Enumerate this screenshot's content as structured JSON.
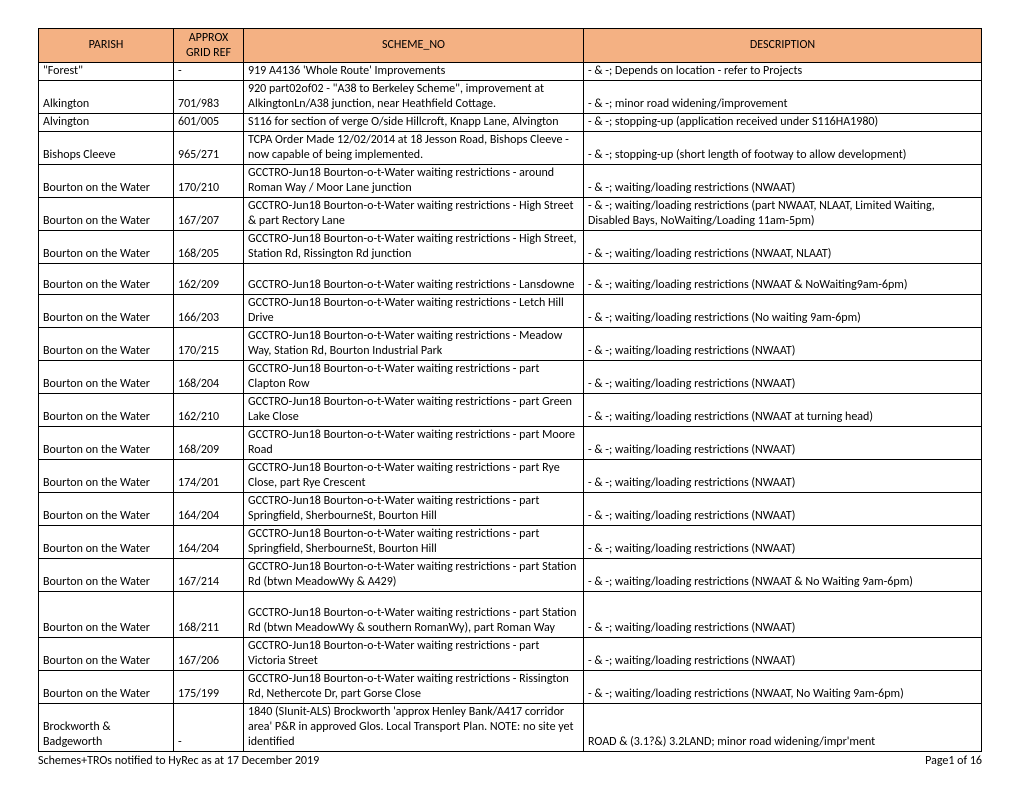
{
  "table": {
    "header_bg": "#f4b183",
    "border_color": "#000000",
    "columns": [
      {
        "key": "parish",
        "label": "PARISH"
      },
      {
        "key": "grid",
        "label": "APPROX GRID REF"
      },
      {
        "key": "scheme",
        "label": "SCHEME_NO"
      },
      {
        "key": "desc",
        "label": "DESCRIPTION"
      }
    ],
    "rows": [
      {
        "parish": "\"Forest\"",
        "grid": "-",
        "scheme": "919 A4136 'Whole Route' Improvements",
        "desc": "- & -; Depends on location - refer to Projects"
      },
      {
        "parish": "Alkington",
        "grid": "701/983",
        "scheme": "920 part02of02 - \"A38 to Berkeley Scheme\", improvement at AlkingtonLn/A38 junction, near Heathfield Cottage.",
        "desc": "- & -; minor road widening/improvement"
      },
      {
        "parish": "Alvington",
        "grid": "601/005",
        "scheme": "S116 for section of verge O/side Hillcroft, Knapp Lane, Alvington",
        "desc": "- & -; stopping-up (application received under S116HA1980)"
      },
      {
        "parish": "Bishops Cleeve",
        "grid": "965/271",
        "scheme": "TCPA Order Made 12/02/2014 at 18 Jesson Road, Bishops Cleeve - now capable of being implemented.",
        "desc": "- & -; stopping-up (short length of footway to allow development)"
      },
      {
        "parish": "Bourton on the Water",
        "grid": "170/210",
        "scheme": "GCCTRO-Jun18 Bourton-o-t-Water waiting restrictions - around Roman Way / Moor Lane junction",
        "desc": "- & -; waiting/loading restrictions (NWAAT)"
      },
      {
        "parish": "Bourton on the Water",
        "grid": "167/207",
        "scheme": "GCCTRO-Jun18 Bourton-o-t-Water waiting restrictions - High Street & part Rectory Lane",
        "desc": "- & -; waiting/loading restrictions (part NWAAT, NLAAT, Limited Waiting, Disabled Bays, NoWaiting/Loading 11am-5pm)"
      },
      {
        "parish": "Bourton on the Water",
        "grid": "168/205",
        "scheme": "GCCTRO-Jun18 Bourton-o-t-Water waiting restrictions - High Street, Station Rd, Rissington Rd junction",
        "desc": "- & -; waiting/loading restrictions (NWAAT, NLAAT)"
      },
      {
        "parish": "Bourton on the Water",
        "grid": "162/209",
        "scheme": "GCCTRO-Jun18 Bourton-o-t-Water waiting restrictions - Lansdowne",
        "desc": "- & -; waiting/loading restrictions (NWAAT & NoWaiting9am-6pm)",
        "spacer": true
      },
      {
        "parish": "Bourton on the Water",
        "grid": "166/203",
        "scheme": "GCCTRO-Jun18 Bourton-o-t-Water waiting restrictions - Letch Hill Drive",
        "desc": "- & -; waiting/loading restrictions (No waiting 9am-6pm)"
      },
      {
        "parish": "Bourton on the Water",
        "grid": "170/215",
        "scheme": "GCCTRO-Jun18 Bourton-o-t-Water waiting restrictions - Meadow Way, Station Rd, Bourton Industrial Park",
        "desc": "- & -; waiting/loading restrictions (NWAAT)"
      },
      {
        "parish": "Bourton on the Water",
        "grid": "168/204",
        "scheme": "GCCTRO-Jun18 Bourton-o-t-Water waiting restrictions - part Clapton Row",
        "desc": "- & -; waiting/loading restrictions (NWAAT)"
      },
      {
        "parish": "Bourton on the Water",
        "grid": "162/210",
        "scheme": "GCCTRO-Jun18 Bourton-o-t-Water waiting restrictions - part Green Lake Close",
        "desc": "- & -; waiting/loading restrictions (NWAAT at turning head)"
      },
      {
        "parish": "Bourton on the Water",
        "grid": "168/209",
        "scheme": "GCCTRO-Jun18 Bourton-o-t-Water waiting restrictions - part Moore Road",
        "desc": "- & -; waiting/loading restrictions (NWAAT)"
      },
      {
        "parish": "Bourton on the Water",
        "grid": "174/201",
        "scheme": "GCCTRO-Jun18 Bourton-o-t-Water waiting restrictions - part Rye Close, part Rye Crescent",
        "desc": "- & -; waiting/loading restrictions (NWAAT)"
      },
      {
        "parish": "Bourton on the Water",
        "grid": "164/204",
        "scheme": "GCCTRO-Jun18 Bourton-o-t-Water waiting restrictions - part Springfield, SherbourneSt, Bourton Hill",
        "desc": "- & -; waiting/loading restrictions (NWAAT)"
      },
      {
        "parish": "Bourton on the Water",
        "grid": "164/204",
        "scheme": "GCCTRO-Jun18 Bourton-o-t-Water waiting restrictions - part Springfield, SherbourneSt, Bourton Hill",
        "desc": "- & -; waiting/loading restrictions (NWAAT)"
      },
      {
        "parish": "Bourton on the Water",
        "grid": "167/214",
        "scheme": "GCCTRO-Jun18 Bourton-o-t-Water waiting restrictions - part Station Rd (btwn MeadowWy & A429)",
        "desc": "- & -; waiting/loading restrictions (NWAAT & No Waiting 9am-6pm)"
      },
      {
        "parish": "Bourton on the Water",
        "grid": "168/211",
        "scheme": "GCCTRO-Jun18 Bourton-o-t-Water waiting restrictions - part Station Rd (btwn MeadowWy & southern RomanWy), part Roman Way",
        "desc": "- & -; waiting/loading restrictions (NWAAT)",
        "spacer": true
      },
      {
        "parish": "Bourton on the Water",
        "grid": "167/206",
        "scheme": "GCCTRO-Jun18 Bourton-o-t-Water waiting restrictions - part Victoria Street",
        "desc": "- & -; waiting/loading restrictions (NWAAT)"
      },
      {
        "parish": "Bourton on the Water",
        "grid": "175/199",
        "scheme": "GCCTRO-Jun18 Bourton-o-t-Water waiting restrictions - Rissington Rd, Nethercote Dr, part Gorse Close",
        "desc": "- & -; waiting/loading restrictions (NWAAT, No Waiting 9am-6pm)"
      },
      {
        "parish": "Brockworth & Badgeworth",
        "grid": "-",
        "scheme": "1840 (SIunit-ALS) Brockworth 'approx Henley Bank/A417 corridor area' P&R in approved Glos. Local Transport Plan.  NOTE: no site yet identified",
        "desc": "ROAD & (3.1?&) 3.2LAND; minor road widening/impr'ment"
      }
    ]
  },
  "footer": {
    "left": "Schemes+TROs notified to HyRec as at 17 December 2019",
    "right": "Page1 of 16"
  }
}
